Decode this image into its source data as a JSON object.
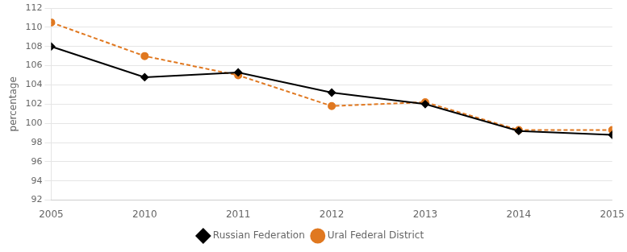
{
  "chart_data": {
    "type": "line",
    "categories": [
      "2005",
      "2010",
      "2011",
      "2012",
      "2013",
      "2014",
      "2015"
    ],
    "series": [
      {
        "name": "Russian Federation",
        "color": "#000000",
        "marker": "diamond",
        "line_style": "solid",
        "values": [
          108.0,
          104.8,
          105.3,
          103.2,
          102.0,
          99.2,
          98.8
        ]
      },
      {
        "name": "Ural Federal District",
        "color": "#e07820",
        "marker": "circle",
        "line_style": "dashed",
        "values": [
          110.5,
          107.0,
          105.0,
          101.8,
          102.2,
          99.3,
          99.3
        ]
      }
    ],
    "y_label": "percentage",
    "ylim": [
      92,
      112
    ],
    "yticks": [
      92,
      94,
      96,
      98,
      100,
      102,
      104,
      106,
      108,
      110,
      112
    ],
    "grid": true,
    "legend": "bottom"
  }
}
